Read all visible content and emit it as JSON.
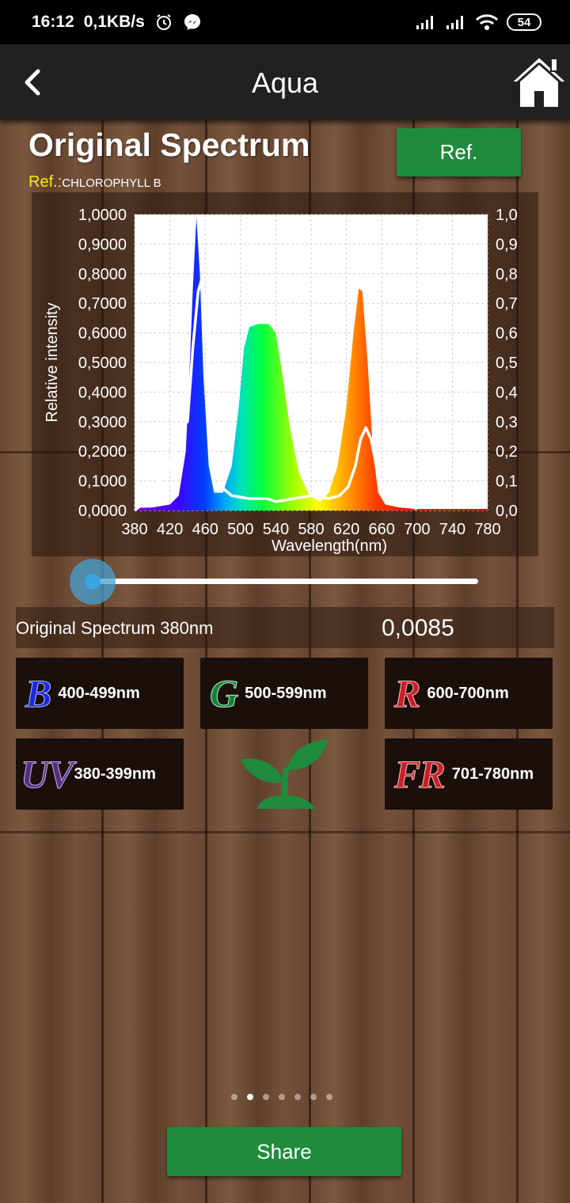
{
  "status_bar": {
    "time": "16:12",
    "speed": "0,1KB/s",
    "battery": "54",
    "icons": [
      "alarm-icon",
      "messenger-icon",
      "signal-icon",
      "signal-icon",
      "wifi-icon",
      "battery-icon"
    ]
  },
  "app_bar": {
    "title": "Aqua",
    "back_icon": "chevron-left-icon",
    "home_icon": "home-icon"
  },
  "section": {
    "title": "Original Spectrum",
    "ref_button": "Ref.",
    "ref_prefix": "Ref.:",
    "ref_value": "CHLOROPHYLL B"
  },
  "chart_data": {
    "type": "area",
    "xlabel": "Wavelength(nm)",
    "ylabel": "Relative intensity",
    "xlim": [
      380,
      780
    ],
    "ylim": [
      0,
      1
    ],
    "x_ticks": [
      "380",
      "420",
      "460",
      "500",
      "540",
      "580",
      "620",
      "660",
      "700",
      "740",
      "780"
    ],
    "y_ticks_left": [
      "0,0000",
      "0,1000",
      "0,2000",
      "0,3000",
      "0,4000",
      "0,5000",
      "0,6000",
      "0,7000",
      "0,8000",
      "0,9000",
      "1,0000"
    ],
    "y_ticks_right": [
      "0,0",
      "0,1",
      "0,2",
      "0,3",
      "0,4",
      "0,5",
      "0,6",
      "0,7",
      "0,8",
      "0,9",
      "1,0"
    ],
    "grid": true,
    "series": [
      {
        "fill": "spectrum-rainbow",
        "points": [
          [
            380,
            0.0085
          ],
          [
            400,
            0.01
          ],
          [
            420,
            0.02
          ],
          [
            430,
            0.05
          ],
          [
            438,
            0.2
          ],
          [
            442,
            0.45
          ],
          [
            446,
            0.75
          ],
          [
            450,
            0.99
          ],
          [
            454,
            0.8
          ],
          [
            458,
            0.45
          ],
          [
            464,
            0.15
          ],
          [
            470,
            0.06
          ],
          [
            480,
            0.06
          ],
          [
            490,
            0.15
          ],
          [
            498,
            0.35
          ],
          [
            504,
            0.55
          ],
          [
            510,
            0.62
          ],
          [
            520,
            0.63
          ],
          [
            532,
            0.63
          ],
          [
            540,
            0.6
          ],
          [
            548,
            0.45
          ],
          [
            556,
            0.28
          ],
          [
            566,
            0.13
          ],
          [
            578,
            0.05
          ],
          [
            590,
            0.03
          ],
          [
            600,
            0.06
          ],
          [
            610,
            0.15
          ],
          [
            620,
            0.35
          ],
          [
            628,
            0.6
          ],
          [
            634,
            0.75
          ],
          [
            638,
            0.74
          ],
          [
            644,
            0.5
          ],
          [
            650,
            0.2
          ],
          [
            656,
            0.06
          ],
          [
            664,
            0.02
          ],
          [
            680,
            0.01
          ],
          [
            700,
            0.005
          ],
          [
            780,
            0.005
          ]
        ]
      },
      {
        "color": "#ffffff",
        "points": [
          [
            380,
            0.0
          ],
          [
            388,
            0.02
          ],
          [
            400,
            0.08
          ],
          [
            414,
            0.12
          ],
          [
            424,
            0.18
          ],
          [
            430,
            0.25
          ],
          [
            436,
            0.29
          ],
          [
            440,
            0.3
          ],
          [
            446,
            0.55
          ],
          [
            452,
            0.74
          ],
          [
            456,
            0.78
          ],
          [
            460,
            0.7
          ],
          [
            464,
            0.45
          ],
          [
            470,
            0.2
          ],
          [
            478,
            0.08
          ],
          [
            490,
            0.05
          ],
          [
            510,
            0.04
          ],
          [
            530,
            0.04
          ],
          [
            540,
            0.03
          ],
          [
            560,
            0.04
          ],
          [
            580,
            0.05
          ],
          [
            600,
            0.04
          ],
          [
            612,
            0.05
          ],
          [
            622,
            0.08
          ],
          [
            630,
            0.15
          ],
          [
            636,
            0.24
          ],
          [
            642,
            0.28
          ],
          [
            648,
            0.24
          ],
          [
            654,
            0.15
          ],
          [
            662,
            0.07
          ],
          [
            676,
            0.03
          ],
          [
            696,
            0.01
          ],
          [
            700,
            0.005
          ]
        ]
      }
    ]
  },
  "slider": {
    "value_nm": 380,
    "min": 380,
    "max": 780
  },
  "readout": {
    "label": "Original Spectrum 380nm",
    "value": "0,0085"
  },
  "bands": {
    "b": {
      "letter": "B",
      "range": "400-499nm"
    },
    "g": {
      "letter": "G",
      "range": "500-599nm"
    },
    "r": {
      "letter": "R",
      "range": "600-700nm"
    },
    "uv": {
      "letter": "UV",
      "range": "380-399nm"
    },
    "fr": {
      "letter": "FR",
      "range": "701-780nm"
    }
  },
  "plant_icon": "sprout-icon",
  "pager": {
    "count": 7,
    "active": 1
  },
  "share_button": "Share"
}
